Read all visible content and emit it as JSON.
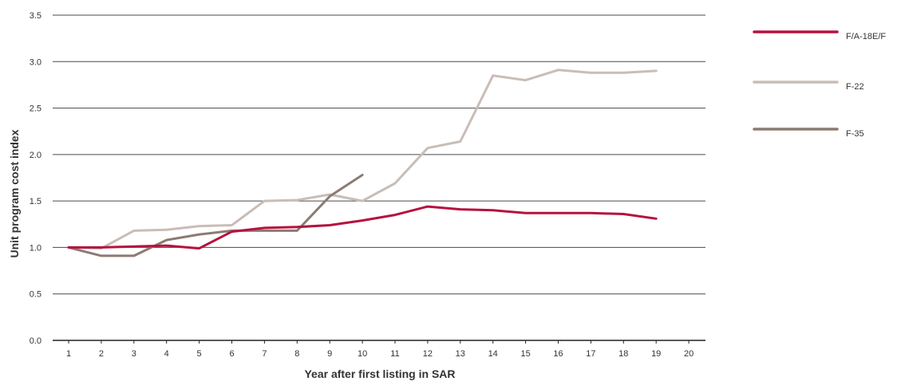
{
  "chart_data": {
    "type": "line",
    "xlabel": "Year after first listing in SAR",
    "ylabel": "Unit program cost index",
    "x": [
      1,
      2,
      3,
      4,
      5,
      6,
      7,
      8,
      9,
      10,
      11,
      12,
      13,
      14,
      15,
      16,
      17,
      18,
      19,
      20
    ],
    "x_tick_labels": [
      "1",
      "2",
      "3",
      "4",
      "5",
      "6",
      "7",
      "8",
      "9",
      "10",
      "11",
      "12",
      "13",
      "14",
      "15",
      "16",
      "17",
      "18",
      "19",
      "20"
    ],
    "ylim": [
      0,
      3.5
    ],
    "y_ticks": [
      0,
      0.5,
      1.0,
      1.5,
      2.0,
      2.5,
      3.0,
      3.5
    ],
    "y_tick_labels": [
      "0.0",
      "0.5",
      "1.0",
      "1.5",
      "2.0",
      "2.5",
      "3.0",
      "3.5"
    ],
    "grid": "horizontal",
    "legend_position": "right",
    "series": [
      {
        "name": "F/A-18E/F",
        "color": "#b5123f",
        "x": [
          1,
          2,
          3,
          4,
          5,
          6,
          7,
          8,
          9,
          10,
          11,
          12,
          13,
          14,
          15,
          16,
          17,
          18,
          19
        ],
        "values": [
          1.0,
          1.0,
          1.01,
          1.02,
          0.99,
          1.17,
          1.21,
          1.22,
          1.24,
          1.29,
          1.35,
          1.44,
          1.41,
          1.4,
          1.37,
          1.37,
          1.37,
          1.36,
          1.31
        ]
      },
      {
        "name": "F-22",
        "color": "#c9bdb6",
        "x": [
          1,
          2,
          3,
          4,
          5,
          6,
          7,
          8,
          9,
          10,
          11,
          12,
          13,
          14,
          15,
          16,
          17,
          18,
          19
        ],
        "values": [
          1.0,
          0.99,
          1.18,
          1.19,
          1.23,
          1.24,
          1.5,
          1.51,
          1.57,
          1.5,
          1.69,
          2.07,
          2.14,
          2.85,
          2.8,
          2.91,
          2.88,
          2.88,
          2.9
        ]
      },
      {
        "name": "F-35",
        "color": "#8c7b73",
        "x": [
          1,
          2,
          3,
          4,
          5,
          6,
          7,
          8,
          9,
          10
        ],
        "values": [
          1.0,
          0.91,
          0.91,
          1.08,
          1.14,
          1.18,
          1.18,
          1.18,
          1.55,
          1.78
        ]
      }
    ]
  }
}
